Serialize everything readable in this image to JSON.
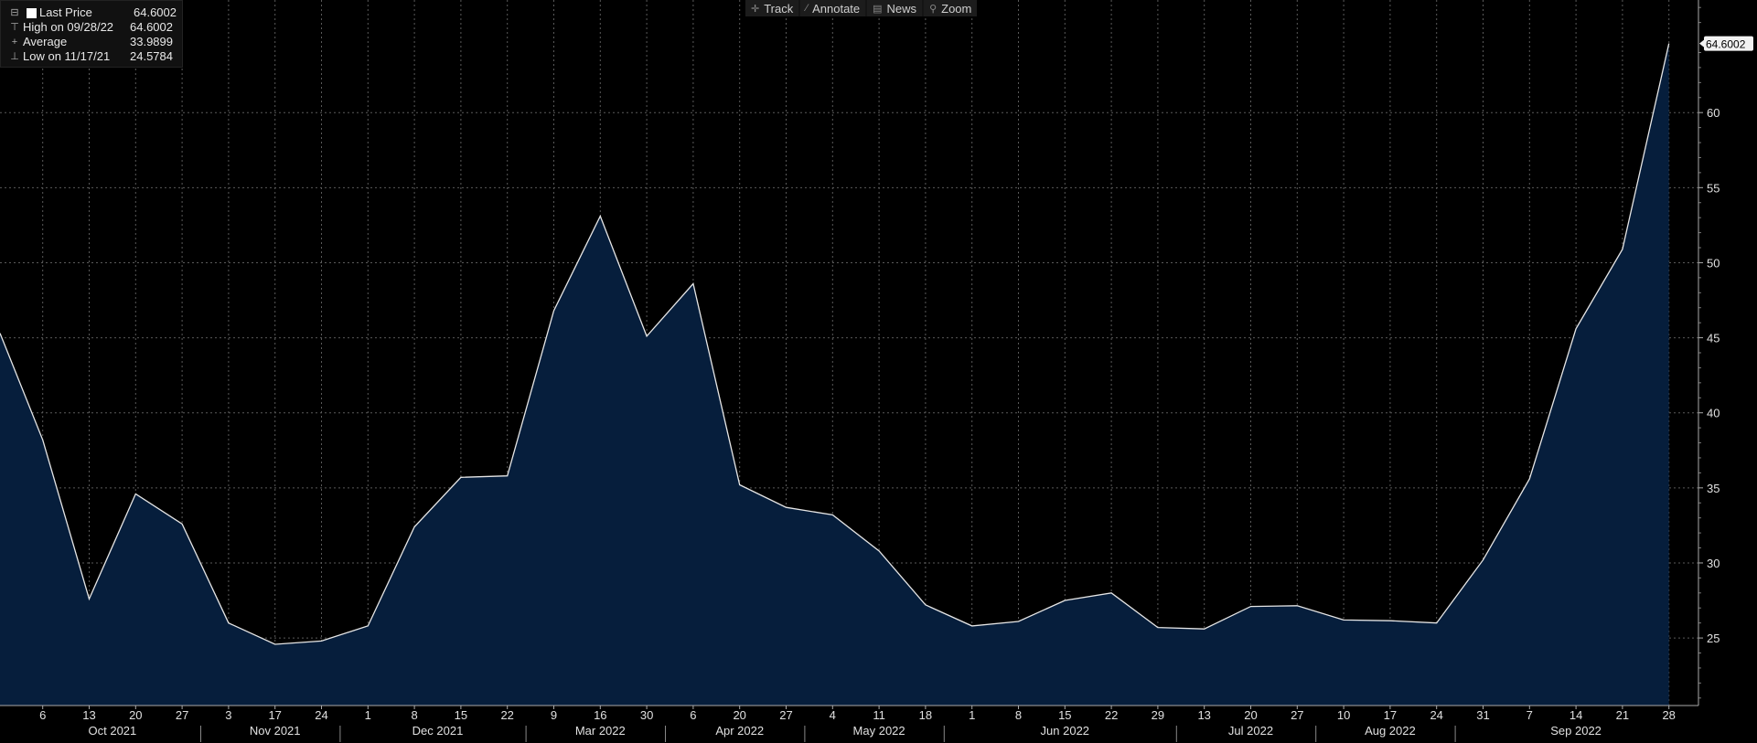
{
  "toolbar": {
    "items": [
      {
        "label": "Track",
        "icon": "crosshair-icon"
      },
      {
        "label": "Annotate",
        "icon": "pencil-icon"
      },
      {
        "label": "News",
        "icon": "news-icon"
      },
      {
        "label": "Zoom",
        "icon": "magnifier-icon"
      }
    ]
  },
  "legend": [
    {
      "label": "Last Price",
      "value": "64.6002"
    },
    {
      "label": "High on 09/28/22",
      "value": "64.6002"
    },
    {
      "label": "Average",
      "value": "33.9899"
    },
    {
      "label": "Low on 11/17/21",
      "value": "24.5784"
    }
  ],
  "colors": {
    "line": "#e6e6e6",
    "area": "#061e3c",
    "grid": "#5a5a5a",
    "background": "#000000"
  },
  "chart_data": {
    "type": "area",
    "title": "",
    "xlabel": "",
    "ylabel": "",
    "ylim": [
      20.5,
      67.5
    ],
    "yticks": [
      25,
      30,
      35,
      40,
      45,
      50,
      55,
      60
    ],
    "last_value_label": "64.6002",
    "grid": true,
    "series": [
      {
        "x": [
          "6",
          "13",
          "20",
          "27",
          "3",
          "17",
          "24",
          "1",
          "8",
          "15",
          "22",
          "9",
          "16",
          "30",
          "6",
          "20",
          "27",
          "4",
          "11",
          "18",
          "1",
          "8",
          "15",
          "22",
          "29",
          "13",
          "20",
          "27",
          "10",
          "17",
          "24",
          "31",
          "7",
          "14",
          "21",
          "28"
        ],
        "values": [
          38.2,
          27.6,
          34.6,
          32.6,
          26.0,
          24.58,
          24.8,
          25.8,
          32.4,
          35.7,
          35.8,
          46.8,
          53.1,
          45.1,
          48.6,
          35.2,
          33.7,
          33.2,
          30.8,
          27.2,
          25.8,
          26.1,
          27.5,
          28.0,
          25.7,
          25.6,
          27.1,
          27.15,
          26.2,
          26.15,
          26.0,
          30.2,
          35.6,
          45.6,
          50.9,
          64.6002
        ]
      }
    ],
    "start_value": 45.3,
    "month_labels": [
      {
        "label": "Oct 2021",
        "first": 0,
        "last": 3
      },
      {
        "label": "Nov 2021",
        "first": 4,
        "last": 6
      },
      {
        "label": "Dec 2021",
        "first": 7,
        "last": 10
      },
      {
        "label": "Mar 2022",
        "first": 11,
        "last": 13
      },
      {
        "label": "Apr 2022",
        "first": 14,
        "last": 16
      },
      {
        "label": "May 2022",
        "first": 17,
        "last": 19
      },
      {
        "label": "Jun 2022",
        "first": 20,
        "last": 24
      },
      {
        "label": "Jul 2022",
        "first": 25,
        "last": 27
      },
      {
        "label": "Aug 2022",
        "first": 28,
        "last": 30
      },
      {
        "label": "Sep 2022",
        "first": 31,
        "last": 35
      }
    ]
  }
}
